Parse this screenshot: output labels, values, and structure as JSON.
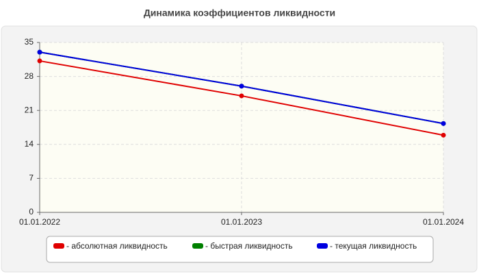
{
  "chart_data": {
    "type": "line",
    "title": "Динамика коэффициентов ликвидности",
    "categories": [
      "01.01.2022",
      "01.01.2023",
      "01.01.2024"
    ],
    "series": [
      {
        "name": "- абсолютная ликвидность",
        "color": "#e00000",
        "values": [
          31.2,
          24.0,
          15.9
        ]
      },
      {
        "name": "- быстрая ликвидность",
        "color": "#008000",
        "values": [
          33.0,
          26.0,
          18.3
        ]
      },
      {
        "name": "- текущая ликвидность",
        "color": "#0000e0",
        "values": [
          33.0,
          26.0,
          18.3
        ]
      }
    ],
    "ylim": [
      0,
      35
    ],
    "yticks": [
      0,
      7,
      14,
      21,
      28,
      35
    ],
    "grid": true
  }
}
